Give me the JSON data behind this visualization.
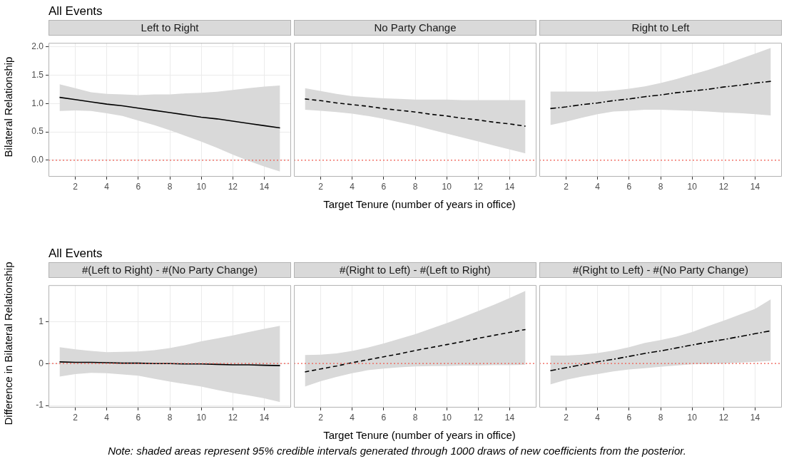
{
  "chart_data": [
    {
      "type": "line",
      "subtitle": "All Events",
      "title": "Left to Right",
      "ylabel": "Bilateral Relationship",
      "x": [
        1,
        2,
        3,
        4,
        5,
        6,
        7,
        8,
        9,
        10,
        11,
        12,
        13,
        14,
        15
      ],
      "xlim": [
        0.3,
        15.7
      ],
      "xticks": [
        2,
        4,
        6,
        8,
        10,
        12,
        14
      ],
      "ylim": [
        -0.29,
        2.07
      ],
      "yticks": [
        {
          "value": 0,
          "label": "0.0"
        },
        {
          "value": 0.5,
          "label": "0.5"
        },
        {
          "value": 1,
          "label": "1.0"
        },
        {
          "value": 1.5,
          "label": "1.5"
        },
        {
          "value": 2,
          "label": "2.0"
        }
      ],
      "grid": true,
      "ref_lines": [
        {
          "axis": "y",
          "value": 0,
          "color": "#f05a4f",
          "line_style": "dotted"
        }
      ],
      "series": [
        {
          "color": "#000000",
          "line_style": "solid",
          "values": [
            1.11,
            1.07,
            1.03,
            0.99,
            0.96,
            0.92,
            0.88,
            0.84,
            0.8,
            0.76,
            0.73,
            0.69,
            0.65,
            0.61,
            0.57
          ],
          "lower": [
            0.87,
            0.88,
            0.87,
            0.83,
            0.78,
            0.7,
            0.62,
            0.53,
            0.43,
            0.33,
            0.22,
            0.1,
            -0.01,
            -0.11,
            -0.2
          ],
          "upper": [
            1.34,
            1.27,
            1.2,
            1.17,
            1.16,
            1.15,
            1.16,
            1.16,
            1.18,
            1.19,
            1.21,
            1.24,
            1.27,
            1.3,
            1.32
          ]
        }
      ]
    },
    {
      "type": "line",
      "title": "No Party Change",
      "xlabel": "Target Tenure (number of years in office)",
      "x": [
        1,
        2,
        3,
        4,
        5,
        6,
        7,
        8,
        9,
        10,
        11,
        12,
        13,
        14,
        15
      ],
      "xlim": [
        0.3,
        15.7
      ],
      "xticks": [
        2,
        4,
        6,
        8,
        10,
        12,
        14
      ],
      "ylim": [
        -0.29,
        2.07
      ],
      "tick_labels": "x",
      "grid": true,
      "ref_lines": [
        {
          "axis": "y",
          "value": 0,
          "color": "#f05a4f",
          "line_style": "dotted"
        }
      ],
      "series": [
        {
          "color": "#000000",
          "line_style": "dashed",
          "values": [
            1.08,
            1.05,
            1.01,
            0.98,
            0.95,
            0.91,
            0.88,
            0.85,
            0.81,
            0.78,
            0.74,
            0.71,
            0.67,
            0.64,
            0.6
          ],
          "lower": [
            0.89,
            0.87,
            0.85,
            0.82,
            0.78,
            0.73,
            0.67,
            0.61,
            0.54,
            0.47,
            0.4,
            0.33,
            0.26,
            0.19,
            0.12
          ],
          "upper": [
            1.27,
            1.22,
            1.17,
            1.13,
            1.11,
            1.09,
            1.08,
            1.07,
            1.07,
            1.07,
            1.06,
            1.06,
            1.06,
            1.06,
            1.06
          ]
        }
      ]
    },
    {
      "type": "line",
      "title": "Right to Left",
      "x": [
        1,
        2,
        3,
        4,
        5,
        6,
        7,
        8,
        9,
        10,
        11,
        12,
        13,
        14,
        15
      ],
      "xlim": [
        0.3,
        15.7
      ],
      "xticks": [
        2,
        4,
        6,
        8,
        10,
        12,
        14
      ],
      "ylim": [
        -0.29,
        2.07
      ],
      "tick_labels": "x",
      "grid": true,
      "ref_lines": [
        {
          "axis": "y",
          "value": 0,
          "color": "#f05a4f",
          "line_style": "dotted"
        }
      ],
      "series": [
        {
          "color": "#000000",
          "line_style": "dashdot",
          "values": [
            0.91,
            0.94,
            0.98,
            1.01,
            1.05,
            1.08,
            1.12,
            1.15,
            1.19,
            1.22,
            1.25,
            1.29,
            1.32,
            1.36,
            1.39
          ],
          "lower": [
            0.62,
            0.68,
            0.75,
            0.81,
            0.86,
            0.87,
            0.89,
            0.89,
            0.88,
            0.87,
            0.86,
            0.84,
            0.83,
            0.81,
            0.79
          ],
          "upper": [
            1.21,
            1.21,
            1.21,
            1.21,
            1.23,
            1.26,
            1.3,
            1.36,
            1.43,
            1.51,
            1.59,
            1.68,
            1.78,
            1.88,
            1.98
          ]
        }
      ]
    },
    {
      "type": "line",
      "subtitle": "All Events",
      "title": "#(Left to Right) - #(No Party Change)",
      "ylabel": "Difference in Bilateral Relationship",
      "x": [
        1,
        2,
        3,
        4,
        5,
        6,
        7,
        8,
        9,
        10,
        11,
        12,
        13,
        14,
        15
      ],
      "xlim": [
        0.3,
        15.7
      ],
      "xticks": [
        2,
        4,
        6,
        8,
        10,
        12,
        14
      ],
      "ylim": [
        -1.05,
        1.87
      ],
      "yticks": [
        -1,
        0,
        1
      ],
      "grid": true,
      "ref_lines": [
        {
          "axis": "y",
          "value": 0,
          "color": "#f05a4f",
          "line_style": "dotted"
        }
      ],
      "series": [
        {
          "color": "#000000",
          "line_style": "solid",
          "values": [
            0.04,
            0.03,
            0.03,
            0.02,
            0.01,
            0.01,
            0.0,
            0.0,
            -0.01,
            -0.01,
            -0.02,
            -0.03,
            -0.03,
            -0.04,
            -0.05
          ],
          "lower": [
            -0.31,
            -0.25,
            -0.22,
            -0.23,
            -0.26,
            -0.29,
            -0.36,
            -0.43,
            -0.49,
            -0.55,
            -0.63,
            -0.7,
            -0.76,
            -0.83,
            -0.92
          ],
          "upper": [
            0.39,
            0.34,
            0.3,
            0.27,
            0.28,
            0.29,
            0.32,
            0.37,
            0.44,
            0.53,
            0.6,
            0.67,
            0.75,
            0.83,
            0.9
          ]
        }
      ]
    },
    {
      "type": "line",
      "title": "#(Right to Left) - #(Left to Right)",
      "xlabel": "Target Tenure (number of years in office)",
      "x": [
        1,
        2,
        3,
        4,
        5,
        6,
        7,
        8,
        9,
        10,
        11,
        12,
        13,
        14,
        15
      ],
      "xlim": [
        0.3,
        15.7
      ],
      "xticks": [
        2,
        4,
        6,
        8,
        10,
        12,
        14
      ],
      "ylim": [
        -1.05,
        1.87
      ],
      "tick_labels": "x",
      "grid": true,
      "ref_lines": [
        {
          "axis": "y",
          "value": 0,
          "color": "#f05a4f",
          "line_style": "dotted"
        }
      ],
      "series": [
        {
          "color": "#000000",
          "line_style": "dashed",
          "values": [
            -0.2,
            -0.13,
            -0.06,
            0.02,
            0.09,
            0.16,
            0.23,
            0.31,
            0.38,
            0.45,
            0.52,
            0.6,
            0.67,
            0.74,
            0.81
          ],
          "lower": [
            -0.55,
            -0.42,
            -0.32,
            -0.23,
            -0.16,
            -0.12,
            -0.09,
            -0.07,
            -0.06,
            -0.06,
            -0.05,
            -0.05,
            -0.04,
            -0.04,
            -0.03
          ],
          "upper": [
            0.2,
            0.21,
            0.24,
            0.3,
            0.38,
            0.48,
            0.59,
            0.7,
            0.83,
            0.96,
            1.1,
            1.25,
            1.4,
            1.56,
            1.73
          ]
        }
      ]
    },
    {
      "type": "line",
      "title": "#(Right to Left) - #(No Party Change)",
      "x": [
        1,
        2,
        3,
        4,
        5,
        6,
        7,
        8,
        9,
        10,
        11,
        12,
        13,
        14,
        15
      ],
      "xlim": [
        0.3,
        15.7
      ],
      "xticks": [
        2,
        4,
        6,
        8,
        10,
        12,
        14
      ],
      "ylim": [
        -1.05,
        1.87
      ],
      "tick_labels": "x",
      "grid": true,
      "ref_lines": [
        {
          "axis": "y",
          "value": 0,
          "color": "#f05a4f",
          "line_style": "dotted"
        }
      ],
      "annotations": [
        "Note: shaded areas represent 95% credible intervals generated through 1000 draws of new coefficients from the posterior."
      ],
      "series": [
        {
          "color": "#000000",
          "line_style": "dashdot",
          "values": [
            -0.17,
            -0.1,
            -0.03,
            0.04,
            0.1,
            0.17,
            0.24,
            0.3,
            0.37,
            0.44,
            0.51,
            0.57,
            0.64,
            0.71,
            0.78
          ],
          "lower": [
            -0.5,
            -0.39,
            -0.31,
            -0.25,
            -0.19,
            -0.14,
            -0.11,
            -0.08,
            -0.05,
            -0.02,
            -0.01,
            0.0,
            0.02,
            0.04,
            0.06
          ],
          "upper": [
            0.19,
            0.19,
            0.21,
            0.25,
            0.31,
            0.39,
            0.49,
            0.56,
            0.64,
            0.75,
            0.89,
            1.02,
            1.16,
            1.3,
            1.53
          ]
        }
      ]
    }
  ]
}
